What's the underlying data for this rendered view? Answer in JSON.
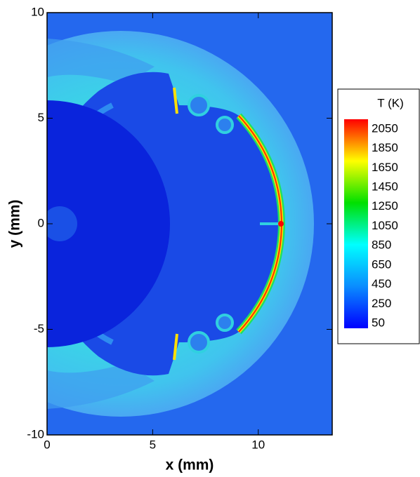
{
  "chart_data": {
    "type": "contour",
    "xlabel": "x (mm)",
    "ylabel": "y (mm)",
    "xlim": [
      0,
      13.5
    ],
    "ylim": [
      -10,
      10
    ],
    "xticks": [
      0,
      5,
      10
    ],
    "yticks": [
      -10,
      -5,
      0,
      5,
      10
    ],
    "colorbar": {
      "title": "T (K)",
      "clim": [
        0,
        2150
      ],
      "ticks": [
        50,
        250,
        450,
        650,
        850,
        1050,
        1250,
        1450,
        1650,
        1850,
        2050
      ],
      "colors": [
        "#0000ff",
        "#0a8cff",
        "#00ffff",
        "#00e000",
        "#ffff00",
        "#ff0000"
      ]
    }
  }
}
